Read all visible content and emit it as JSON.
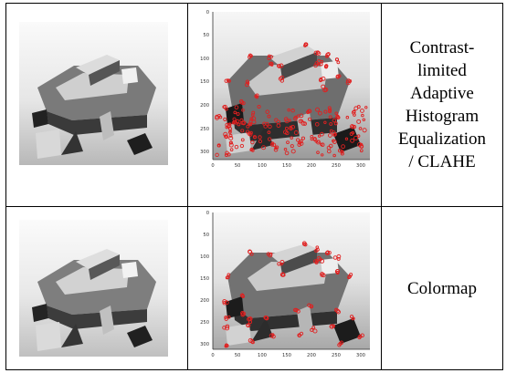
{
  "rows": [
    {
      "label_lines": [
        "Contrast-",
        "limited",
        "Adaptive",
        "Histogram",
        "Equalization",
        "/ CLAHE"
      ],
      "plot": {
        "x_ticks": [
          "0",
          "50",
          "100",
          "150",
          "200",
          "250",
          "300"
        ],
        "y_ticks": [
          "0",
          "50",
          "100",
          "150",
          "200",
          "250",
          "300"
        ]
      }
    },
    {
      "label_lines": [
        "Colormap"
      ],
      "plot": {
        "x_ticks": [
          "0",
          "50",
          "100",
          "150",
          "200",
          "250",
          "300"
        ],
        "y_ticks": [
          "0",
          "50",
          "100",
          "150",
          "200",
          "250",
          "300"
        ]
      }
    }
  ],
  "colors": {
    "marker": "#e02020",
    "border": "#000000"
  }
}
